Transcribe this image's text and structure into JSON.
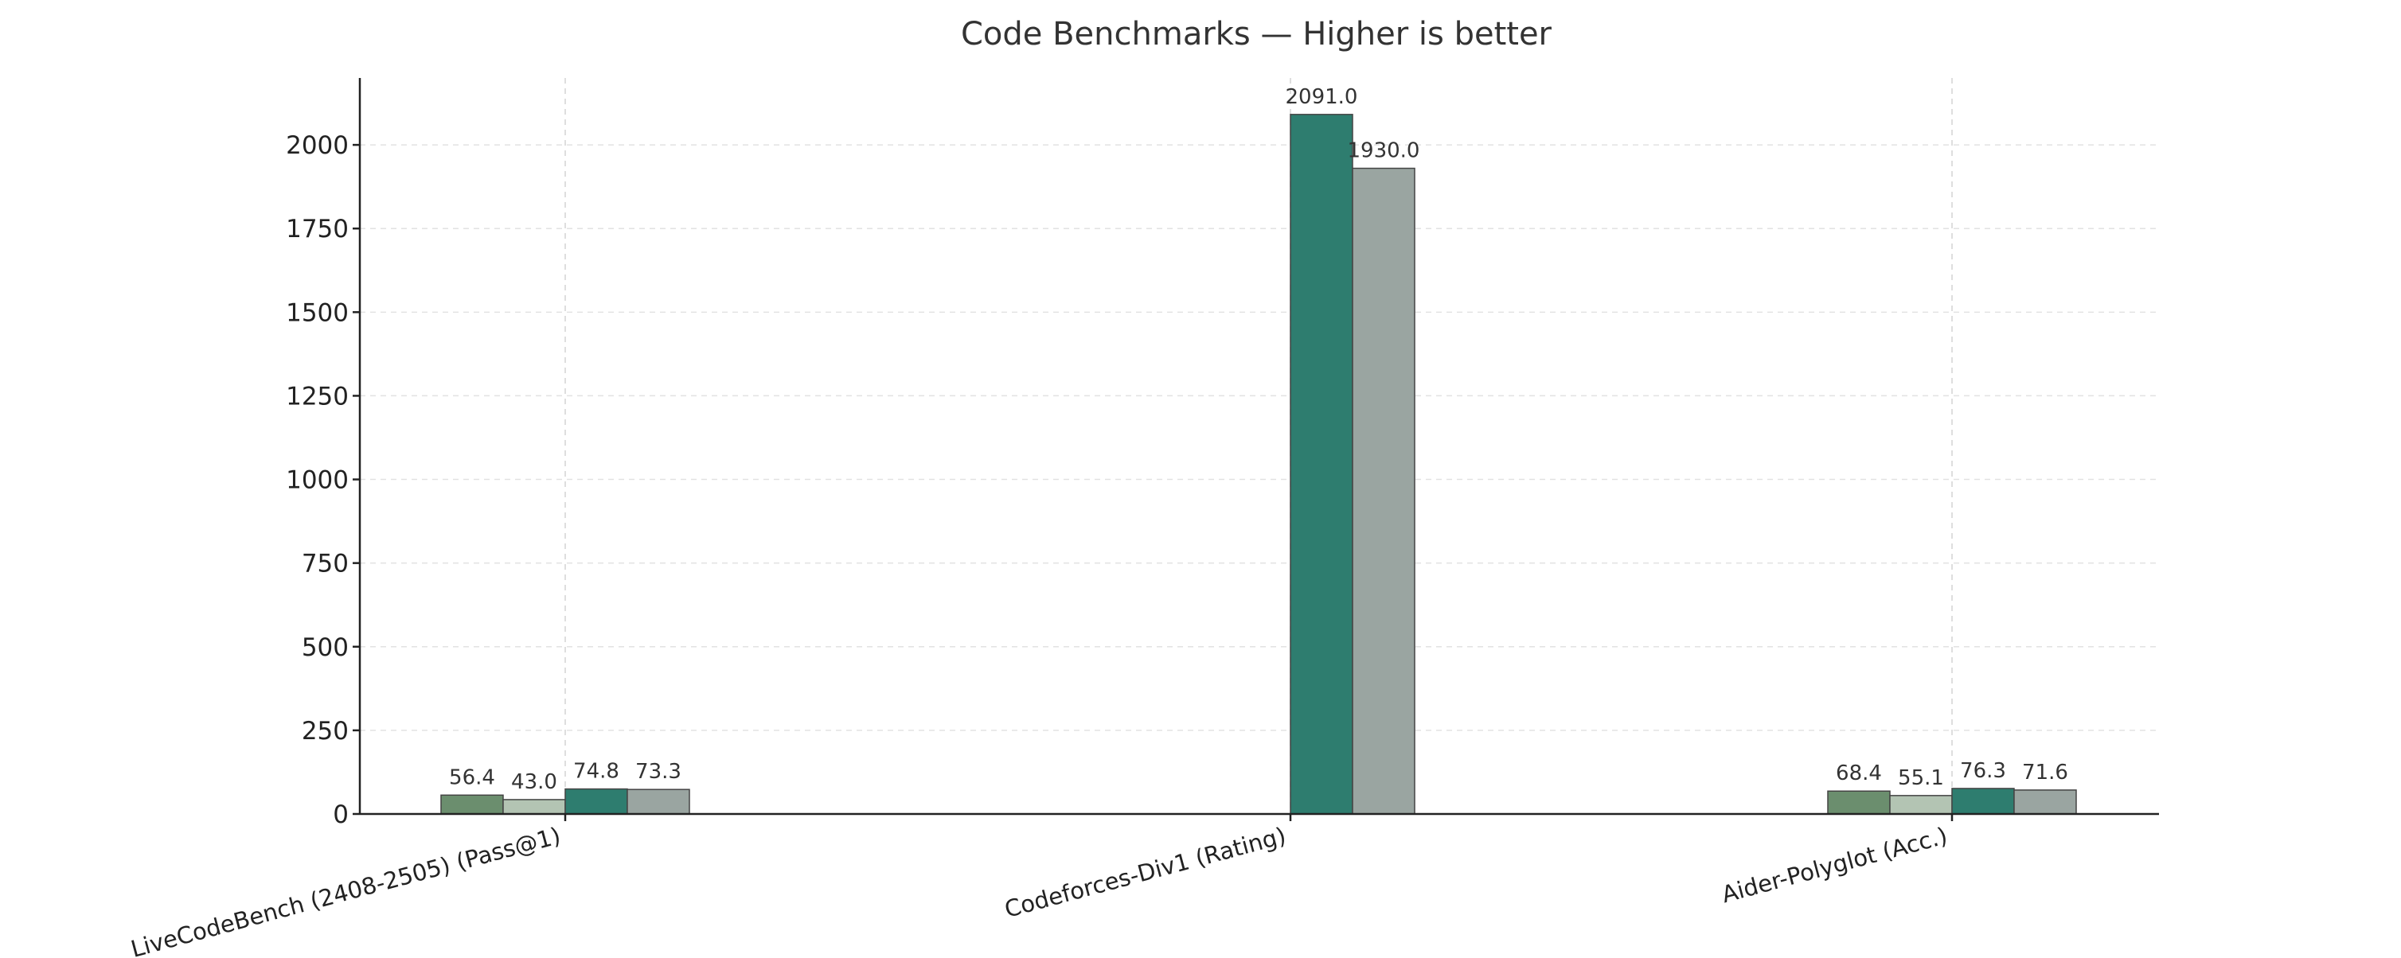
{
  "chart_data": {
    "type": "bar",
    "title": "Code Benchmarks — Higher is better",
    "xlabel": "",
    "ylabel": "",
    "categories": [
      "LiveCodeBench (2408-2505) (Pass@1)",
      "Codeforces-Div1 (Rating)",
      "Aider-Polyglot (Acc.)"
    ],
    "ylim": [
      0,
      2200
    ],
    "yticks": [
      "0",
      "250",
      "500",
      "750",
      "1000",
      "1250",
      "1500",
      "1750",
      "2000"
    ],
    "grid": true,
    "legend": "none",
    "series": [
      {
        "values": [
          56.4,
          null,
          68.4
        ],
        "color": "#6b8e6e"
      },
      {
        "values": [
          43.0,
          null,
          55.1
        ],
        "color": "#b3c4b3"
      },
      {
        "values": [
          74.8,
          2091.0,
          76.3
        ],
        "color": "#2e7d6f"
      },
      {
        "values": [
          73.3,
          1930.0,
          71.6
        ],
        "color": "#9aa5a1"
      }
    ],
    "value_labels": [
      [
        "56.4",
        "",
        "68.4"
      ],
      [
        "43.0",
        "",
        "55.1"
      ],
      [
        "74.8",
        "2091.0",
        "76.3"
      ],
      [
        "73.3",
        "1930.0",
        "71.6"
      ]
    ]
  }
}
